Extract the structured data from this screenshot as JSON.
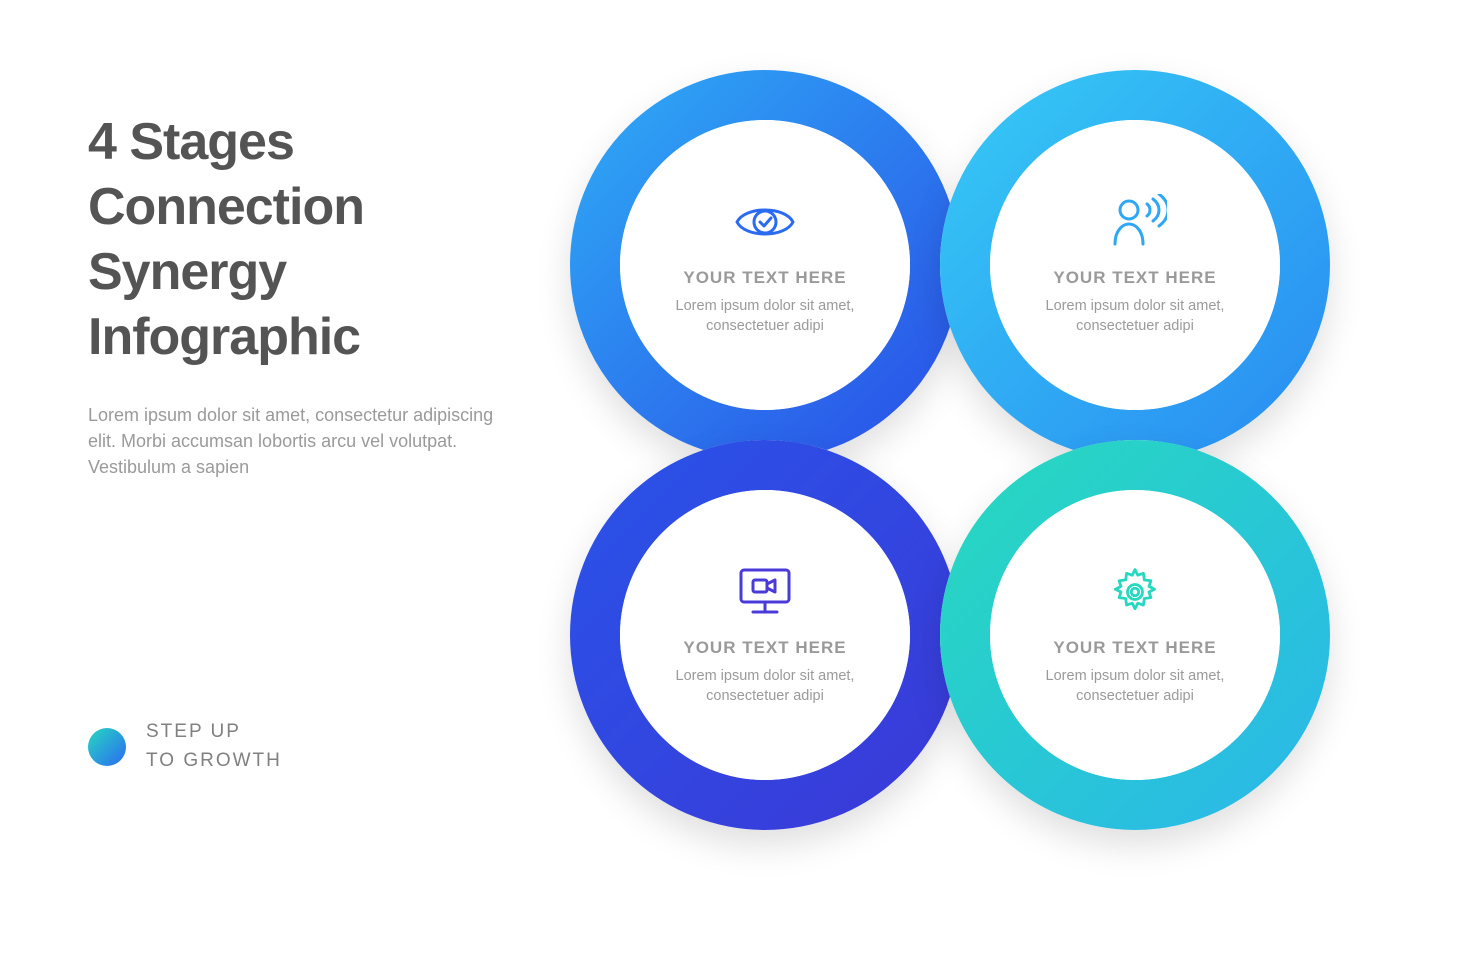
{
  "background_color": "#ffffff",
  "header": {
    "title": "4 Stages Connection Synergy Infographic",
    "title_color": "#545454",
    "title_fontsize": 52,
    "title_fontweight": 800,
    "subtitle": "Lorem ipsum dolor sit amet, consectetur adipiscing elit. Morbi accumsan lobortis arcu vel volutpat. Vestibulum a sapien",
    "subtitle_color": "#9a9a9a",
    "subtitle_fontsize": 18
  },
  "footer": {
    "line1": "STEP UP",
    "line2": "TO GROWTH",
    "text_color": "#808080",
    "text_fontsize": 19,
    "dot_gradient_from": "#27d8c0",
    "dot_gradient_to": "#2a6bf2",
    "dot_size": 38
  },
  "diagram": {
    "type": "infographic",
    "layout": "4-interlocking-rings-2x2",
    "ring_outer_diameter": 390,
    "ring_stroke_width": 50,
    "ring_shadow": "0 15px 35px rgba(0,0,0,0.13)",
    "item_title_color": "#9a9a9a",
    "item_title_fontsize": 17,
    "item_body_color": "#9a9a9a",
    "item_body_fontsize": 14.5,
    "items": [
      {
        "pos": "tl",
        "gradient_from": "#2ea7f5",
        "gradient_to": "#2a52e8",
        "icon": "eye-check",
        "icon_color": "#2a6bf2",
        "title": "YOUR TEXT HERE",
        "body": "Lorem ipsum dolor sit amet, consectetuer adipi"
      },
      {
        "pos": "tr",
        "gradient_from": "#35c7f5",
        "gradient_to": "#2a8ef2",
        "icon": "person-broadcast",
        "icon_color": "#2ea7f5",
        "title": "YOUR TEXT HERE",
        "body": "Lorem ipsum dolor sit amet, consectetuer adipi"
      },
      {
        "pos": "bl",
        "gradient_from": "#2a52e8",
        "gradient_to": "#3a3ad8",
        "icon": "monitor-video",
        "icon_color": "#4a3ad8",
        "title": "YOUR TEXT HERE",
        "body": "Lorem ipsum dolor sit amet, consectetuer adipi"
      },
      {
        "pos": "br",
        "gradient_from": "#27d8c0",
        "gradient_to": "#2ab8e8",
        "icon": "gear",
        "icon_color": "#27d8c0",
        "title": "YOUR TEXT HERE",
        "body": "Lorem ipsum dolor sit amet, consectetuer adipi"
      }
    ]
  }
}
